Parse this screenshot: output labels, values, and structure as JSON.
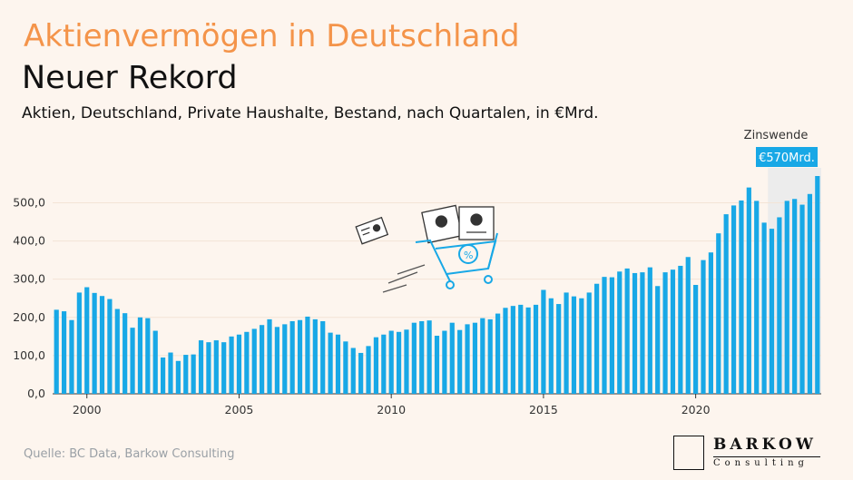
{
  "header": {
    "title": "Aktienvermögen in Deutschland",
    "subtitle": "Neuer Rekord",
    "description": "Aktien, Deutschland, Private Haushalte, Bestand, nach Quartalen, in €Mrd."
  },
  "footer": {
    "source": "Quelle: BC Data, Barkow Consulting"
  },
  "logo": {
    "word": "BARKOW",
    "sub": "Consulting"
  },
  "colors": {
    "title": "#f4944a",
    "bar": "#18a8e6",
    "callout": "#18a8e6",
    "band": "#ececec"
  },
  "chart_data": {
    "type": "bar",
    "title": "Aktienvermögen in Deutschland",
    "xlabel": "",
    "ylabel": "",
    "ylim": [
      0,
      570
    ],
    "y_ticks": [
      "0,0",
      "100,0",
      "200,0",
      "300,0",
      "400,0",
      "500,0"
    ],
    "y_tick_values": [
      0,
      100,
      200,
      300,
      400,
      500
    ],
    "x_ticks": [
      "2000",
      "2005",
      "2010",
      "2015",
      "2020"
    ],
    "start_year": 1999,
    "start_quarter": 1,
    "annotation": {
      "label": "Zinswende",
      "callout": "€570Mrd.",
      "from_year": 2022.5
    },
    "series": [
      {
        "name": "Aktien, Private Haushalte",
        "values": [
          220,
          216,
          193,
          265,
          279,
          264,
          256,
          248,
          222,
          211,
          173,
          200,
          198,
          165,
          95,
          108,
          86,
          102,
          103,
          140,
          135,
          140,
          135,
          150,
          155,
          162,
          170,
          180,
          195,
          175,
          182,
          190,
          193,
          202,
          195,
          190,
          160,
          155,
          137,
          120,
          107,
          125,
          148,
          155,
          165,
          162,
          168,
          186,
          190,
          192,
          152,
          165,
          186,
          167,
          182,
          186,
          198,
          195,
          210,
          225,
          230,
          233,
          226,
          233,
          272,
          250,
          235,
          265,
          255,
          250,
          265,
          288,
          306,
          305,
          320,
          328,
          316,
          318,
          331,
          282,
          318,
          325,
          335,
          358,
          285,
          350,
          370,
          420,
          470,
          493,
          506,
          540,
          505,
          448,
          432,
          462,
          505,
          510,
          495,
          523,
          570
        ]
      }
    ]
  }
}
